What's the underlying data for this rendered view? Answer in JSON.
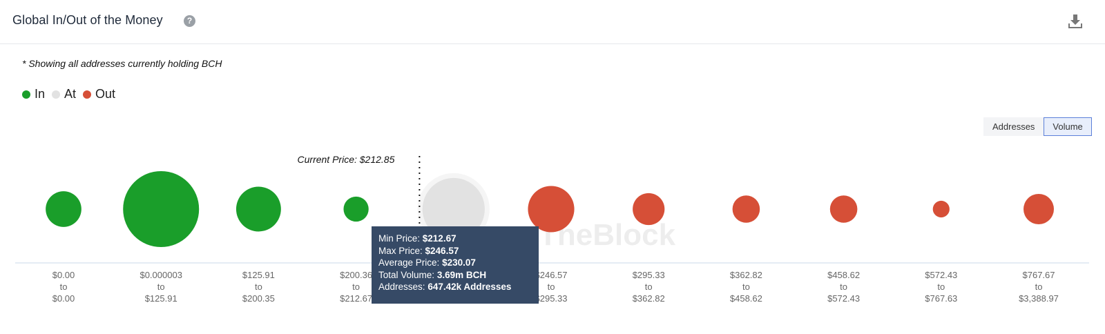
{
  "header": {
    "title": "Global In/Out of the Money",
    "help_icon": "help-circle-icon",
    "download_icon": "download-icon"
  },
  "note": "* Showing all addresses currently holding BCH",
  "legend": [
    {
      "label": "In",
      "color": "#1a9e2a"
    },
    {
      "label": "At",
      "color": "#e2e2e2"
    },
    {
      "label": "Out",
      "color": "#d64f37"
    }
  ],
  "toggle": {
    "options": [
      "Addresses",
      "Volume"
    ],
    "selected": "Volume"
  },
  "watermark": "TheBlock",
  "tooltip": {
    "min_price_label": "Min Price:",
    "min_price": "$212.67",
    "max_price_label": "Max Price:",
    "max_price": "$246.57",
    "avg_price_label": "Average Price:",
    "avg_price": "$230.07",
    "volume_label": "Total Volume:",
    "volume": "3.69m BCH",
    "addresses_label": "Addresses:",
    "addresses": "647.42k Addresses"
  },
  "chart_data": {
    "type": "bubble",
    "metric": "Volume",
    "current_price_label": "Current Price: $212.85",
    "current_price": 212.85,
    "categories": [
      {
        "from": "$0.00",
        "to": "$0.00",
        "status": "In",
        "relative_size": 0.47
      },
      {
        "from": "$0.000003",
        "to": "$125.91",
        "status": "In",
        "relative_size": 1.0
      },
      {
        "from": "$125.91",
        "to": "$200.35",
        "status": "In",
        "relative_size": 0.59
      },
      {
        "from": "$200.36",
        "to": "$212.67",
        "status": "In",
        "relative_size": 0.33
      },
      {
        "from": "$212.67",
        "to": "$246.57",
        "status": "At",
        "relative_size": 0.82
      },
      {
        "from": "$246.57",
        "to": "$295.33",
        "status": "Out",
        "relative_size": 0.61
      },
      {
        "from": "$295.33",
        "to": "$362.82",
        "status": "Out",
        "relative_size": 0.42
      },
      {
        "from": "$362.82",
        "to": "$458.62",
        "status": "Out",
        "relative_size": 0.36
      },
      {
        "from": "$458.62",
        "to": "$572.43",
        "status": "Out",
        "relative_size": 0.36
      },
      {
        "from": "$572.43",
        "to": "$767.63",
        "status": "Out",
        "relative_size": 0.22
      },
      {
        "from": "$767.67",
        "to": "$3,388.97",
        "status": "Out",
        "relative_size": 0.4
      }
    ],
    "to_word": "to",
    "highlighted_index": 4
  }
}
